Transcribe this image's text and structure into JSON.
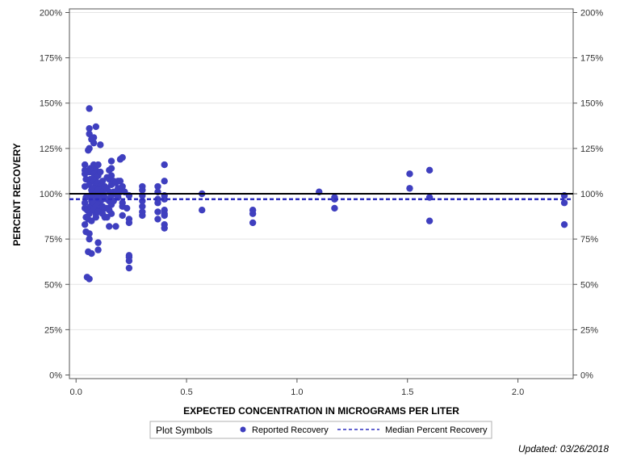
{
  "chart_data": {
    "type": "scatter",
    "xlabel": "EXPECTED CONCENTRATION IN MICROGRAMS PER LITER",
    "ylabel": "PERCENT RECOVERY",
    "xlim": [
      -0.03,
      2.25
    ],
    "ylim": [
      -2,
      202
    ],
    "x_ticks": [
      0,
      0.5,
      1,
      1.5,
      2
    ],
    "x_tick_labels": [
      "0.0",
      "0.5",
      "1.0",
      "1.5",
      "2.0"
    ],
    "y_ticks": [
      0,
      25,
      50,
      75,
      100,
      125,
      150,
      175,
      200
    ],
    "y_tick_labels": [
      "0%",
      "25%",
      "50%",
      "75%",
      "100%",
      "125%",
      "150%",
      "175%",
      "200%"
    ],
    "grid": "horizontal",
    "reference_line": 100,
    "median_percent_recovery": 97,
    "colors": {
      "points": "#3f3fbf",
      "median_line": "#2f2fbf",
      "reference_line": "#000000",
      "grid": "#e4e4e4"
    },
    "legend": {
      "title": "Plot Symbols",
      "position": "bottom",
      "items": [
        "Reported Recovery",
        "Median Percent Recovery"
      ]
    },
    "series": [
      {
        "name": "Reported Recovery",
        "points": [
          [
            0.04,
            116
          ],
          [
            0.04,
            113
          ],
          [
            0.04,
            111
          ],
          [
            0.045,
            108
          ],
          [
            0.04,
            104
          ],
          [
            0.045,
            98
          ],
          [
            0.04,
            95
          ],
          [
            0.04,
            92
          ],
          [
            0.045,
            87
          ],
          [
            0.04,
            83
          ],
          [
            0.045,
            79
          ],
          [
            0.05,
            54
          ],
          [
            0.06,
            53
          ],
          [
            0.055,
            68
          ],
          [
            0.06,
            75
          ],
          [
            0.06,
            78
          ],
          [
            0.055,
            86
          ],
          [
            0.05,
            91
          ],
          [
            0.06,
            147
          ],
          [
            0.06,
            136
          ],
          [
            0.06,
            133
          ],
          [
            0.055,
            124
          ],
          [
            0.06,
            125
          ],
          [
            0.07,
            130
          ],
          [
            0.065,
            114
          ],
          [
            0.06,
            112
          ],
          [
            0.065,
            108
          ],
          [
            0.06,
            105
          ],
          [
            0.07,
            102
          ],
          [
            0.065,
            99
          ],
          [
            0.07,
            96
          ],
          [
            0.065,
            93
          ],
          [
            0.06,
            89
          ],
          [
            0.07,
            85
          ],
          [
            0.07,
            67
          ],
          [
            0.08,
            131
          ],
          [
            0.08,
            128
          ],
          [
            0.09,
            137
          ],
          [
            0.08,
            116
          ],
          [
            0.09,
            113
          ],
          [
            0.08,
            111
          ],
          [
            0.09,
            109
          ],
          [
            0.08,
            107
          ],
          [
            0.09,
            105
          ],
          [
            0.08,
            103
          ],
          [
            0.09,
            101
          ],
          [
            0.08,
            99
          ],
          [
            0.09,
            97
          ],
          [
            0.08,
            95
          ],
          [
            0.09,
            93
          ],
          [
            0.08,
            91
          ],
          [
            0.09,
            89
          ],
          [
            0.09,
            87
          ],
          [
            0.1,
            73
          ],
          [
            0.1,
            69
          ],
          [
            0.1,
            116
          ],
          [
            0.1,
            110
          ],
          [
            0.1,
            106
          ],
          [
            0.11,
            127
          ],
          [
            0.11,
            112
          ],
          [
            0.11,
            104
          ],
          [
            0.1,
            102
          ],
          [
            0.11,
            100
          ],
          [
            0.1,
            98
          ],
          [
            0.11,
            96
          ],
          [
            0.1,
            94
          ],
          [
            0.11,
            92
          ],
          [
            0.1,
            90
          ],
          [
            0.12,
            107
          ],
          [
            0.12,
            101
          ],
          [
            0.12,
            97
          ],
          [
            0.12,
            93
          ],
          [
            0.12,
            89
          ],
          [
            0.13,
            104
          ],
          [
            0.13,
            98
          ],
          [
            0.13,
            92
          ],
          [
            0.13,
            87
          ],
          [
            0.14,
            109
          ],
          [
            0.14,
            103
          ],
          [
            0.14,
            97
          ],
          [
            0.14,
            92
          ],
          [
            0.14,
            87
          ],
          [
            0.15,
            113
          ],
          [
            0.15,
            108
          ],
          [
            0.15,
            101
          ],
          [
            0.15,
            96
          ],
          [
            0.15,
            91
          ],
          [
            0.15,
            82
          ],
          [
            0.16,
            118
          ],
          [
            0.16,
            114
          ],
          [
            0.16,
            110
          ],
          [
            0.16,
            105
          ],
          [
            0.16,
            99
          ],
          [
            0.16,
            94
          ],
          [
            0.16,
            89
          ],
          [
            0.17,
            107
          ],
          [
            0.17,
            101
          ],
          [
            0.17,
            96
          ],
          [
            0.18,
            106
          ],
          [
            0.18,
            100
          ],
          [
            0.18,
            82
          ],
          [
            0.19,
            107
          ],
          [
            0.19,
            103
          ],
          [
            0.19,
            98
          ],
          [
            0.2,
            119
          ],
          [
            0.21,
            120
          ],
          [
            0.2,
            107
          ],
          [
            0.2,
            101
          ],
          [
            0.21,
            104
          ],
          [
            0.21,
            95
          ],
          [
            0.21,
            93
          ],
          [
            0.21,
            88
          ],
          [
            0.22,
            101
          ],
          [
            0.23,
            92
          ],
          [
            0.24,
            99
          ],
          [
            0.24,
            86
          ],
          [
            0.24,
            84
          ],
          [
            0.24,
            66
          ],
          [
            0.24,
            65
          ],
          [
            0.24,
            63
          ],
          [
            0.24,
            59
          ],
          [
            0.3,
            104
          ],
          [
            0.3,
            102
          ],
          [
            0.3,
            99
          ],
          [
            0.3,
            96
          ],
          [
            0.3,
            93
          ],
          [
            0.3,
            90
          ],
          [
            0.3,
            88
          ],
          [
            0.37,
            104
          ],
          [
            0.37,
            101
          ],
          [
            0.37,
            97
          ],
          [
            0.37,
            95
          ],
          [
            0.37,
            90
          ],
          [
            0.37,
            86
          ],
          [
            0.4,
            116
          ],
          [
            0.4,
            107
          ],
          [
            0.4,
            99
          ],
          [
            0.4,
            97
          ],
          [
            0.4,
            91
          ],
          [
            0.4,
            89
          ],
          [
            0.4,
            88
          ],
          [
            0.4,
            83
          ],
          [
            0.4,
            81
          ],
          [
            0.57,
            100
          ],
          [
            0.57,
            91
          ],
          [
            0.8,
            91
          ],
          [
            0.8,
            89
          ],
          [
            0.8,
            84
          ],
          [
            1.1,
            101
          ],
          [
            1.17,
            98
          ],
          [
            1.17,
            97
          ],
          [
            1.17,
            92
          ],
          [
            1.51,
            111
          ],
          [
            1.51,
            103
          ],
          [
            1.6,
            113
          ],
          [
            1.6,
            98
          ],
          [
            1.6,
            85
          ],
          [
            2.21,
            99
          ],
          [
            2.21,
            95
          ],
          [
            2.21,
            83
          ]
        ]
      }
    ]
  },
  "footer": {
    "updated": "Updated: 03/26/2018"
  }
}
